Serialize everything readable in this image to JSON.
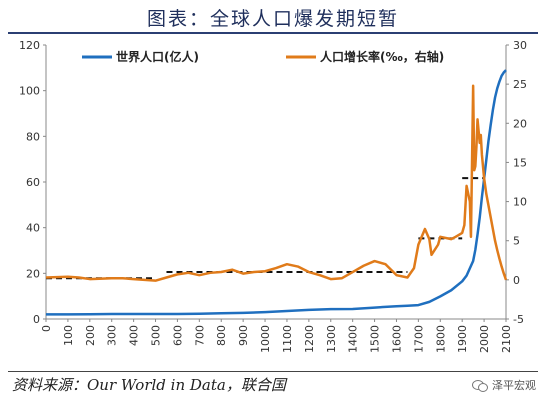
{
  "title": "图表：全球人口爆发期短暂",
  "source": "资料来源：Our World in Data，联合国",
  "watermark": "泽平宏观",
  "chart_data": {
    "type": "line",
    "x_ticks": [
      0,
      100,
      200,
      300,
      400,
      500,
      600,
      700,
      800,
      900,
      1000,
      1100,
      1200,
      1300,
      1400,
      1500,
      1600,
      1700,
      1800,
      1900,
      2000,
      2100
    ],
    "xlim": [
      0,
      2100
    ],
    "y_left": {
      "ylim": [
        0,
        120
      ],
      "ticks": [
        0,
        20,
        40,
        60,
        80,
        100,
        120
      ]
    },
    "y_right": {
      "ylim": [
        -5,
        30
      ],
      "ticks": [
        -5,
        0,
        5,
        10,
        15,
        20,
        25,
        30
      ]
    },
    "grid": false,
    "legend_position": "top",
    "series": [
      {
        "name": "世界人口(亿人)",
        "axis": "left",
        "color": "#1f6fbf",
        "points": [
          [
            0,
            2
          ],
          [
            100,
            2
          ],
          [
            200,
            2.1
          ],
          [
            300,
            2.2
          ],
          [
            400,
            2.2
          ],
          [
            500,
            2.2
          ],
          [
            600,
            2.2
          ],
          [
            700,
            2.3
          ],
          [
            800,
            2.5
          ],
          [
            900,
            2.7
          ],
          [
            1000,
            3
          ],
          [
            1100,
            3.5
          ],
          [
            1200,
            4
          ],
          [
            1300,
            4.3
          ],
          [
            1400,
            4.4
          ],
          [
            1500,
            5
          ],
          [
            1600,
            5.6
          ],
          [
            1650,
            5.8
          ],
          [
            1700,
            6.1
          ],
          [
            1750,
            7.5
          ],
          [
            1800,
            9.9
          ],
          [
            1850,
            12.6
          ],
          [
            1900,
            16.5
          ],
          [
            1920,
            19
          ],
          [
            1950,
            25.4
          ],
          [
            1960,
            30.3
          ],
          [
            1970,
            37
          ],
          [
            1980,
            44.4
          ],
          [
            1990,
            53.3
          ],
          [
            2000,
            61.4
          ],
          [
            2010,
            69.6
          ],
          [
            2020,
            78
          ],
          [
            2030,
            85
          ],
          [
            2040,
            91.5
          ],
          [
            2050,
            97
          ],
          [
            2060,
            101
          ],
          [
            2070,
            104
          ],
          [
            2080,
            106.5
          ],
          [
            2090,
            108
          ],
          [
            2100,
            109
          ]
        ]
      },
      {
        "name": "人口增长率(‰，右轴)",
        "axis": "right",
        "color": "#e07b1a",
        "points": [
          [
            0,
            0.3
          ],
          [
            100,
            0.4
          ],
          [
            150,
            0.3
          ],
          [
            200,
            0.1
          ],
          [
            300,
            0.2
          ],
          [
            350,
            0.2
          ],
          [
            400,
            0.1
          ],
          [
            450,
            0
          ],
          [
            500,
            -0.1
          ],
          [
            550,
            0.3
          ],
          [
            600,
            0.7
          ],
          [
            650,
            0.9
          ],
          [
            700,
            0.6
          ],
          [
            750,
            0.9
          ],
          [
            800,
            1
          ],
          [
            850,
            1.3
          ],
          [
            900,
            0.8
          ],
          [
            950,
            1
          ],
          [
            1000,
            1.1
          ],
          [
            1050,
            1.5
          ],
          [
            1100,
            2
          ],
          [
            1150,
            1.7
          ],
          [
            1200,
            1
          ],
          [
            1250,
            0.6
          ],
          [
            1300,
            0.1
          ],
          [
            1350,
            0.2
          ],
          [
            1400,
            1
          ],
          [
            1450,
            1.8
          ],
          [
            1500,
            2.4
          ],
          [
            1550,
            2
          ],
          [
            1600,
            0.6
          ],
          [
            1650,
            0.3
          ],
          [
            1680,
            1.5
          ],
          [
            1700,
            4.5
          ],
          [
            1730,
            6.5
          ],
          [
            1750,
            5.2
          ],
          [
            1760,
            3.2
          ],
          [
            1790,
            4.5
          ],
          [
            1800,
            5.5
          ],
          [
            1850,
            5.2
          ],
          [
            1870,
            5.5
          ],
          [
            1900,
            6
          ],
          [
            1910,
            7
          ],
          [
            1920,
            12
          ],
          [
            1935,
            10
          ],
          [
            1940,
            5.5
          ],
          [
            1950,
            24.8
          ],
          [
            1955,
            14
          ],
          [
            1960,
            14.5
          ],
          [
            1965,
            17
          ],
          [
            1970,
            20.5
          ],
          [
            1975,
            19
          ],
          [
            1980,
            17.5
          ],
          [
            1985,
            18.5
          ],
          [
            1990,
            16
          ],
          [
            2000,
            13
          ],
          [
            2010,
            11
          ],
          [
            2020,
            9.5
          ],
          [
            2030,
            8
          ],
          [
            2040,
            6.5
          ],
          [
            2050,
            5
          ],
          [
            2060,
            3.8
          ],
          [
            2070,
            2.7
          ],
          [
            2080,
            1.7
          ],
          [
            2090,
            0.8
          ],
          [
            2100,
            0
          ]
        ]
      }
    ],
    "reference_segments": [
      {
        "x": [
          0,
          500
        ],
        "y": 0.2
      },
      {
        "x": [
          550,
          1650
        ],
        "y": 1
      },
      {
        "x": [
          1700,
          1900
        ],
        "y": 5.3
      },
      {
        "x": [
          1900,
          2000
        ],
        "y": 13
      }
    ]
  }
}
